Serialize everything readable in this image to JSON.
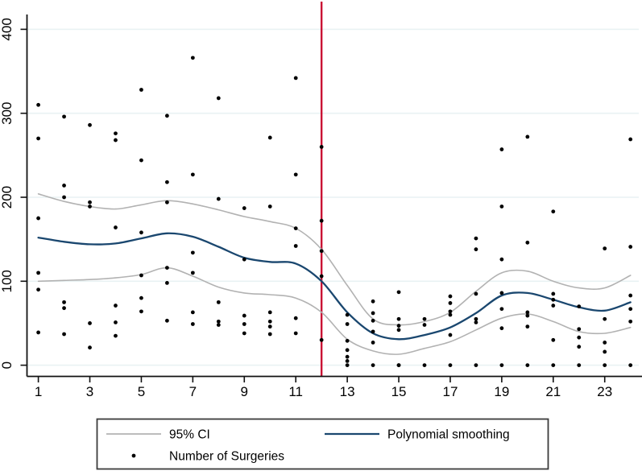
{
  "chart_data": {
    "type": "scatter+line",
    "title": "",
    "xlabel": "",
    "ylabel": "",
    "x_axis": {
      "ticks": [
        1,
        3,
        5,
        7,
        9,
        11,
        13,
        15,
        17,
        19,
        21,
        23
      ],
      "range": [
        0.56,
        24.3
      ]
    },
    "y_axis": {
      "ticks": [
        0,
        100,
        200,
        300,
        400
      ],
      "ylim": [
        -13,
        417
      ]
    },
    "grid": "horizontal",
    "months": [
      1,
      2,
      3,
      4,
      5,
      6,
      7,
      8,
      9,
      10,
      11,
      12,
      13,
      14,
      15,
      16,
      17,
      18,
      19,
      20,
      21,
      22,
      23,
      24
    ],
    "series": [
      {
        "name": "95% CI upper",
        "color": "#b2b2b2",
        "width": 1.6,
        "values": [
          204,
          195,
          189,
          186,
          191,
          196,
          192,
          185,
          177,
          171,
          163,
          138,
          95,
          55,
          48,
          52,
          63,
          88,
          110,
          112,
          100,
          92,
          92,
          107
        ]
      },
      {
        "name": "95% CI lower",
        "color": "#b2b2b2",
        "width": 1.6,
        "values": [
          100,
          101,
          102,
          104,
          108,
          116,
          106,
          93,
          86,
          84,
          80,
          63,
          31,
          17,
          13,
          20,
          28,
          42,
          56,
          61,
          52,
          40,
          38,
          45
        ]
      },
      {
        "name": "Polynomial smoothing",
        "color": "#1a476f",
        "width": 2.3,
        "values": [
          152,
          147,
          144,
          145,
          151,
          157,
          153,
          141,
          128,
          123,
          121,
          100,
          63,
          38,
          31,
          36,
          45,
          62,
          83,
          86,
          78,
          69,
          65,
          75
        ]
      }
    ],
    "scatter": {
      "name": "Number of Surgeries",
      "color": "#000000",
      "marker_radius": 2.4,
      "points_by_month": {
        "1": [
          310,
          270,
          175,
          110,
          90,
          39
        ],
        "2": [
          296,
          214,
          200,
          75,
          68,
          37
        ],
        "3": [
          286,
          194,
          189,
          50,
          21
        ],
        "4": [
          276,
          268,
          164,
          71,
          51,
          35
        ],
        "5": [
          328,
          244,
          158,
          107,
          80,
          64
        ],
        "6": [
          297,
          218,
          194,
          116,
          98,
          53
        ],
        "7": [
          366,
          227,
          134,
          110,
          63,
          49
        ],
        "8": [
          318,
          198,
          75,
          52,
          48
        ],
        "9": [
          187,
          126,
          59,
          49,
          38
        ],
        "10": [
          271,
          189,
          63,
          52,
          46,
          37
        ],
        "11": [
          342,
          227,
          163,
          142,
          56,
          38
        ],
        "12": [
          260,
          172,
          136,
          106,
          30
        ],
        "13": [
          60,
          49,
          29,
          18,
          10,
          5,
          0
        ],
        "14": [
          76,
          62,
          53,
          40,
          27,
          0
        ],
        "15": [
          87,
          55,
          47,
          42,
          0,
          0
        ],
        "16": [
          55,
          48,
          0
        ],
        "17": [
          82,
          74,
          64,
          60,
          36,
          0
        ],
        "18": [
          151,
          138,
          85,
          55,
          51,
          0
        ],
        "19": [
          257,
          189,
          126,
          86,
          67,
          44,
          0
        ],
        "20": [
          272,
          146,
          63,
          59,
          46,
          0
        ],
        "21": [
          183,
          85,
          78,
          71,
          30,
          0
        ],
        "22": [
          70,
          43,
          33,
          22,
          0
        ],
        "23": [
          139,
          55,
          27,
          16,
          0
        ],
        "24": [
          269,
          141,
          83,
          67,
          52,
          0
        ]
      }
    },
    "reference_line": {
      "x": 12,
      "color": "#c91034",
      "width": 2.4
    },
    "legend": {
      "position": "bottom",
      "items": [
        {
          "label": "95% CI",
          "marker": "line",
          "color": "#b2b2b2"
        },
        {
          "label": "Number of Surgeries",
          "marker": "dot",
          "color": "#000000"
        },
        {
          "label": "Polynomial smoothing",
          "marker": "line",
          "color": "#1a476f"
        }
      ]
    },
    "colors": {
      "gridline": "#e9f2f3",
      "axis": "#111111",
      "background": "#ffffff",
      "legend_border": "#3b3b3b"
    }
  }
}
